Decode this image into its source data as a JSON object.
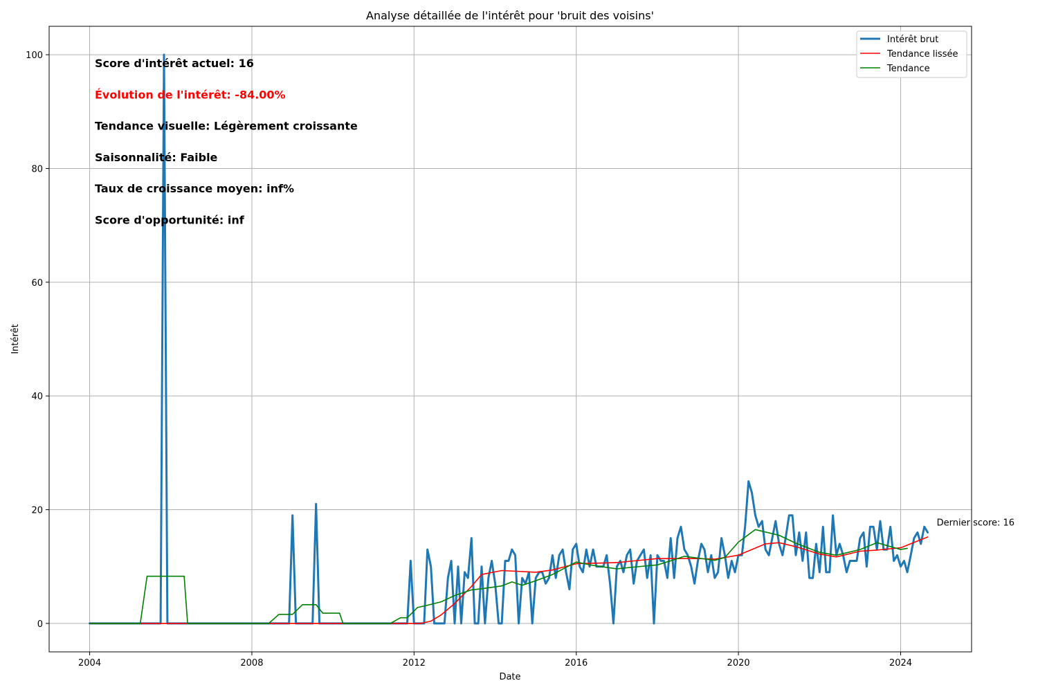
{
  "chart_data": {
    "type": "line",
    "title": "Analyse détaillée de l'intérêt pour 'bruit des voisins'",
    "xlabel": "Date",
    "ylabel": "Intérêt",
    "xlim": [
      "2003-01-01",
      "2025-10-01"
    ],
    "ylim": [
      -5,
      105
    ],
    "xticks": [
      {
        "value": "2004-01-01",
        "label": "2004"
      },
      {
        "value": "2008-01-01",
        "label": "2008"
      },
      {
        "value": "2012-01-01",
        "label": "2012"
      },
      {
        "value": "2016-01-01",
        "label": "2016"
      },
      {
        "value": "2020-01-01",
        "label": "2020"
      },
      {
        "value": "2024-01-01",
        "label": "2024"
      }
    ],
    "yticks": [
      0,
      20,
      40,
      60,
      80,
      100
    ],
    "grid": true,
    "legend_position": "top-right",
    "start_date": "2004-01-01",
    "series": [
      {
        "name": "Intérêt brut",
        "color": "#1f77b4",
        "values": [
          0,
          0,
          0,
          0,
          0,
          0,
          0,
          0,
          0,
          0,
          0,
          0,
          0,
          0,
          0,
          0,
          0,
          0,
          0,
          0,
          0,
          0,
          100,
          0,
          0,
          0,
          0,
          0,
          0,
          0,
          0,
          0,
          0,
          0,
          0,
          0,
          0,
          0,
          0,
          0,
          0,
          0,
          0,
          0,
          0,
          0,
          0,
          0,
          0,
          0,
          0,
          0,
          0,
          0,
          0,
          0,
          0,
          0,
          0,
          0,
          19,
          0,
          0,
          0,
          0,
          0,
          0,
          21,
          0,
          0,
          0,
          0,
          0,
          0,
          0,
          0,
          0,
          0,
          0,
          0,
          0,
          0,
          0,
          0,
          0,
          0,
          0,
          0,
          0,
          0,
          0,
          0,
          0,
          0,
          0,
          11,
          0,
          0,
          0,
          0,
          13,
          10,
          0,
          0,
          0,
          0,
          8,
          11,
          0,
          10,
          0,
          9,
          8,
          15,
          0,
          0,
          10,
          0,
          8,
          11,
          7,
          0,
          0,
          11,
          11,
          13,
          12,
          0,
          8,
          7,
          9,
          0,
          8,
          9,
          9,
          7,
          8,
          12,
          8,
          12,
          13,
          9,
          6,
          13,
          14,
          10,
          9,
          13,
          10,
          13,
          10,
          10,
          10,
          12,
          7,
          0,
          10,
          11,
          9,
          12,
          13,
          7,
          11,
          12,
          13,
          8,
          12,
          0,
          12,
          11,
          11,
          8,
          15,
          8,
          15,
          17,
          13,
          12,
          10,
          7,
          11,
          14,
          13,
          9,
          12,
          8,
          9,
          15,
          12,
          8,
          11,
          9,
          12,
          12,
          17,
          25,
          23,
          19,
          17,
          18,
          13,
          12,
          15,
          18,
          14,
          12,
          15,
          19,
          19,
          12,
          16,
          11,
          16,
          8,
          8,
          14,
          9,
          17,
          9,
          9,
          19,
          12,
          14,
          12,
          9,
          11,
          11,
          11,
          15,
          16,
          10,
          17,
          17,
          13,
          18,
          13,
          13,
          17,
          11,
          12,
          10,
          11,
          9,
          12,
          15,
          16,
          14,
          17,
          16
        ]
      },
      {
        "name": "Tendance lissée",
        "color": "#ff0000",
        "points": [
          [
            "2004-01-01",
            0
          ],
          [
            "2012-03-01",
            0
          ],
          [
            "2012-06-01",
            0.4
          ],
          [
            "2012-09-01",
            1.5
          ],
          [
            "2013-01-01",
            3.5
          ],
          [
            "2013-06-01",
            6.5
          ],
          [
            "2013-09-01",
            8.6
          ],
          [
            "2014-03-01",
            9.3
          ],
          [
            "2015-01-01",
            9.0
          ],
          [
            "2015-06-01",
            9.4
          ],
          [
            "2016-01-01",
            10.5
          ],
          [
            "2017-01-01",
            10.7
          ],
          [
            "2018-01-01",
            11.4
          ],
          [
            "2019-01-01",
            11.4
          ],
          [
            "2019-06-01",
            11.3
          ],
          [
            "2020-01-01",
            12.0
          ],
          [
            "2020-09-01",
            14.0
          ],
          [
            "2021-01-01",
            14.2
          ],
          [
            "2021-06-01",
            13.5
          ],
          [
            "2022-01-01",
            12.2
          ],
          [
            "2022-06-01",
            11.7
          ],
          [
            "2023-01-01",
            12.7
          ],
          [
            "2023-06-01",
            12.9
          ],
          [
            "2024-01-01",
            13.3
          ],
          [
            "2024-09-01",
            15.2
          ]
        ]
      },
      {
        "name": "Tendance",
        "color": "#008000",
        "points": [
          [
            "2004-01-01",
            0
          ],
          [
            "2005-04-01",
            0
          ],
          [
            "2005-06-01",
            8.3
          ],
          [
            "2006-05-01",
            8.3
          ],
          [
            "2006-06-01",
            0
          ],
          [
            "2008-06-01",
            0
          ],
          [
            "2008-09-01",
            1.6
          ],
          [
            "2009-01-01",
            1.6
          ],
          [
            "2009-04-01",
            3.3
          ],
          [
            "2009-08-01",
            3.3
          ],
          [
            "2009-10-01",
            1.8
          ],
          [
            "2010-03-01",
            1.8
          ],
          [
            "2010-04-01",
            0
          ],
          [
            "2011-06-01",
            0
          ],
          [
            "2011-09-01",
            1.0
          ],
          [
            "2011-11-01",
            1.0
          ],
          [
            "2012-02-01",
            2.8
          ],
          [
            "2012-05-01",
            3.2
          ],
          [
            "2012-09-01",
            3.8
          ],
          [
            "2013-01-01",
            4.9
          ],
          [
            "2013-06-01",
            5.9
          ],
          [
            "2013-09-01",
            6.1
          ],
          [
            "2014-03-01",
            6.6
          ],
          [
            "2014-06-01",
            7.3
          ],
          [
            "2014-09-01",
            6.7
          ],
          [
            "2015-01-01",
            7.5
          ],
          [
            "2015-06-01",
            8.6
          ],
          [
            "2016-01-01",
            10.8
          ],
          [
            "2016-06-01",
            10.2
          ],
          [
            "2017-01-01",
            9.6
          ],
          [
            "2017-06-01",
            9.9
          ],
          [
            "2018-01-01",
            10.3
          ],
          [
            "2018-06-01",
            11.2
          ],
          [
            "2018-09-01",
            11.8
          ],
          [
            "2019-06-01",
            11.1
          ],
          [
            "2019-09-01",
            11.6
          ],
          [
            "2020-01-01",
            14.3
          ],
          [
            "2020-06-01",
            16.5
          ],
          [
            "2021-01-01",
            15.5
          ],
          [
            "2021-06-01",
            14.1
          ],
          [
            "2022-01-01",
            12.5
          ],
          [
            "2022-06-01",
            12.0
          ],
          [
            "2023-01-01",
            13.0
          ],
          [
            "2023-06-01",
            14.2
          ],
          [
            "2024-01-01",
            13.0
          ],
          [
            "2024-03-01",
            13.2
          ]
        ]
      }
    ],
    "annotations": [
      {
        "text": "Score d'intérêt actuel: 16",
        "color": "#000000"
      },
      {
        "text": "Évolution de l'intérêt: -84.00%",
        "color": "#ff0000"
      },
      {
        "text": "Tendance visuelle: Légèrement croissante",
        "color": "#000000"
      },
      {
        "text": "Saisonnalité: Faible",
        "color": "#000000"
      },
      {
        "text": "Taux de croissance moyen: inf%",
        "color": "#000000"
      },
      {
        "text": "Score d'opportunité: inf",
        "color": "#000000"
      }
    ],
    "last_point_label": {
      "text": "Dernier score: 16",
      "x": "2024-09-01",
      "y": 16
    }
  }
}
